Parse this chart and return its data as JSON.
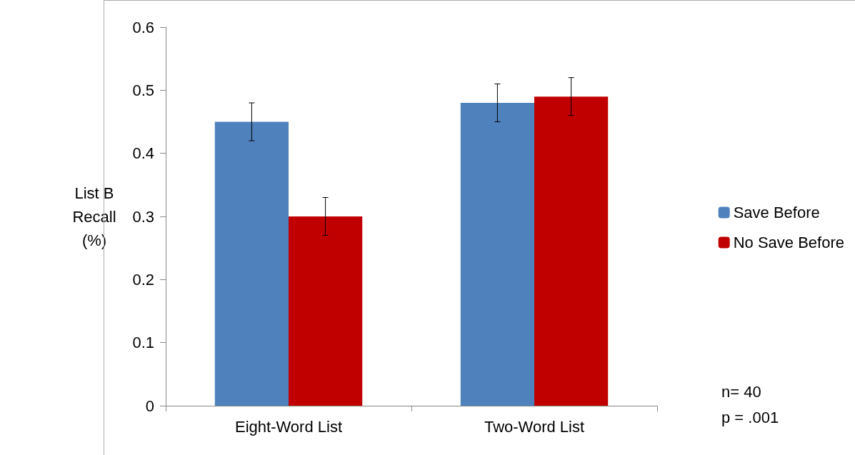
{
  "chart_data": {
    "type": "bar",
    "ylabel": "List B\nRecall\n(%)",
    "categories": [
      "Eight-Word List",
      "Two-Word List"
    ],
    "series": [
      {
        "name": "Save Before",
        "color": "#4f81bd",
        "values": [
          0.45,
          0.48
        ],
        "errors": [
          0.03,
          0.03
        ]
      },
      {
        "name": "No Save Before",
        "color": "#c00000",
        "values": [
          0.3,
          0.49
        ],
        "errors": [
          0.03,
          0.03
        ]
      }
    ],
    "ylim": [
      0,
      0.6
    ],
    "yticks": [
      0,
      0.1,
      0.2,
      0.3,
      0.4,
      0.5,
      0.6
    ],
    "grid": false,
    "legend": "right",
    "annotations": [
      "n= 40",
      "p = .001"
    ]
  }
}
